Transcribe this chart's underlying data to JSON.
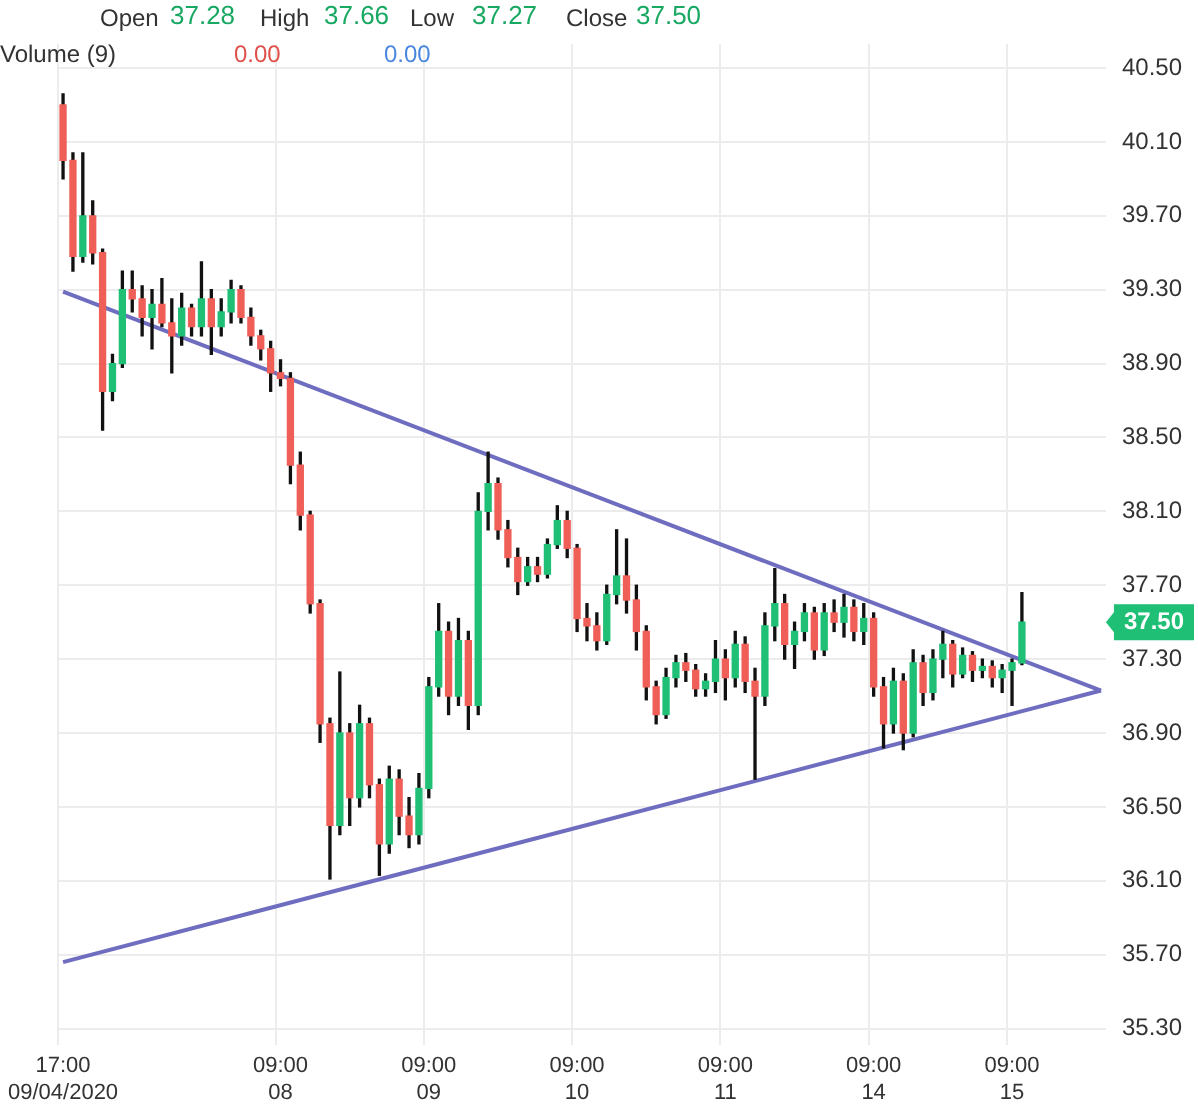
{
  "chart_data": {
    "type": "candlestick",
    "categories": [
      "17:00\n09/04/2020",
      null,
      null,
      null,
      null,
      null,
      null,
      null,
      null,
      null,
      null,
      null,
      null,
      null,
      null,
      null,
      null,
      null,
      null,
      null,
      null,
      null,
      "09:00\n08",
      null,
      null,
      null,
      null,
      null,
      null,
      null,
      null,
      null,
      null,
      null,
      null,
      null,
      null,
      "09:00\n09",
      null,
      null,
      null,
      null,
      null,
      null,
      null,
      null,
      null,
      null,
      null,
      null,
      null,
      null,
      "09:00\n10",
      null,
      null,
      null,
      null,
      null,
      null,
      null,
      null,
      null,
      null,
      null,
      null,
      null,
      null,
      "09:00\n11",
      null,
      null,
      null,
      null,
      null,
      null,
      null,
      null,
      null,
      null,
      null,
      null,
      null,
      null,
      "09:00\n14",
      null,
      null,
      null,
      null,
      null,
      null,
      null,
      null,
      null,
      null,
      null,
      null,
      null,
      "09:00\n15",
      null,
      null,
      null,
      null,
      null,
      null,
      null,
      null,
      null
    ],
    "ohlc": [
      [
        40.3,
        40.36,
        39.9,
        40.0
      ],
      [
        40.0,
        40.04,
        39.4,
        39.48
      ],
      [
        39.48,
        40.04,
        39.45,
        39.7
      ],
      [
        39.7,
        39.78,
        39.44,
        39.5
      ],
      [
        39.5,
        39.52,
        38.54,
        38.75
      ],
      [
        38.75,
        38.95,
        38.7,
        38.9
      ],
      [
        38.9,
        39.4,
        38.88,
        39.3
      ],
      [
        39.3,
        39.4,
        39.18,
        39.25
      ],
      [
        39.25,
        39.32,
        39.05,
        39.15
      ],
      [
        39.15,
        39.3,
        38.98,
        39.22
      ],
      [
        39.22,
        39.36,
        39.1,
        39.12
      ],
      [
        39.12,
        39.25,
        38.85,
        39.05
      ],
      [
        39.05,
        39.28,
        39.0,
        39.2
      ],
      [
        39.2,
        39.22,
        39.05,
        39.1
      ],
      [
        39.1,
        39.45,
        39.05,
        39.25
      ],
      [
        39.25,
        39.3,
        38.95,
        39.1
      ],
      [
        39.1,
        39.25,
        39.05,
        39.18
      ],
      [
        39.18,
        39.35,
        39.12,
        39.3
      ],
      [
        39.3,
        39.32,
        39.12,
        39.15
      ],
      [
        39.15,
        39.2,
        39.0,
        39.05
      ],
      [
        39.05,
        39.08,
        38.92,
        38.98
      ],
      [
        38.98,
        39.02,
        38.75,
        38.85
      ],
      [
        38.85,
        38.92,
        38.78,
        38.82
      ],
      [
        38.82,
        38.85,
        38.25,
        38.35
      ],
      [
        38.35,
        38.42,
        38.0,
        38.08
      ],
      [
        38.08,
        38.1,
        37.55,
        37.6
      ],
      [
        37.6,
        37.62,
        36.85,
        36.95
      ],
      [
        36.95,
        36.98,
        36.11,
        36.4
      ],
      [
        36.4,
        37.23,
        36.35,
        36.9
      ],
      [
        36.9,
        36.95,
        36.4,
        36.55
      ],
      [
        36.55,
        37.05,
        36.5,
        36.95
      ],
      [
        36.95,
        36.98,
        36.55,
        36.62
      ],
      [
        36.62,
        36.65,
        36.13,
        36.3
      ],
      [
        36.3,
        36.72,
        36.25,
        36.65
      ],
      [
        36.65,
        36.7,
        36.35,
        36.45
      ],
      [
        36.45,
        36.55,
        36.28,
        36.35
      ],
      [
        36.35,
        36.68,
        36.3,
        36.6
      ],
      [
        36.6,
        37.2,
        36.55,
        37.15
      ],
      [
        37.15,
        37.6,
        37.1,
        37.45
      ],
      [
        37.45,
        37.5,
        37.0,
        37.1
      ],
      [
        37.1,
        37.52,
        37.05,
        37.4
      ],
      [
        37.4,
        37.45,
        36.92,
        37.05
      ],
      [
        37.05,
        38.2,
        37.0,
        38.1
      ],
      [
        38.1,
        38.42,
        38.0,
        38.25
      ],
      [
        38.25,
        38.28,
        37.95,
        38.0
      ],
      [
        38.0,
        38.05,
        37.8,
        37.85
      ],
      [
        37.85,
        37.9,
        37.65,
        37.72
      ],
      [
        37.72,
        37.85,
        37.7,
        37.8
      ],
      [
        37.8,
        37.85,
        37.72,
        37.76
      ],
      [
        37.76,
        37.95,
        37.74,
        37.92
      ],
      [
        37.92,
        38.13,
        37.9,
        38.05
      ],
      [
        38.05,
        38.1,
        37.85,
        37.9
      ],
      [
        37.9,
        37.92,
        37.45,
        37.52
      ],
      [
        37.52,
        37.6,
        37.4,
        37.48
      ],
      [
        37.48,
        37.55,
        37.35,
        37.4
      ],
      [
        37.4,
        37.7,
        37.38,
        37.65
      ],
      [
        37.65,
        38.0,
        37.6,
        37.75
      ],
      [
        37.75,
        37.95,
        37.55,
        37.62
      ],
      [
        37.62,
        37.7,
        37.35,
        37.45
      ],
      [
        37.45,
        37.48,
        37.08,
        37.15
      ],
      [
        37.15,
        37.18,
        36.95,
        37.0
      ],
      [
        37.0,
        37.25,
        36.98,
        37.2
      ],
      [
        37.2,
        37.32,
        37.15,
        37.28
      ],
      [
        37.28,
        37.33,
        37.18,
        37.24
      ],
      [
        37.24,
        37.27,
        37.1,
        37.14
      ],
      [
        37.14,
        37.22,
        37.1,
        37.18
      ],
      [
        37.18,
        37.4,
        37.12,
        37.3
      ],
      [
        37.3,
        37.35,
        37.08,
        37.2
      ],
      [
        37.2,
        37.45,
        37.15,
        37.38
      ],
      [
        37.38,
        37.42,
        37.12,
        37.18
      ],
      [
        37.18,
        37.25,
        36.65,
        37.1
      ],
      [
        37.1,
        37.55,
        37.05,
        37.48
      ],
      [
        37.48,
        37.79,
        37.4,
        37.6
      ],
      [
        37.6,
        37.65,
        37.3,
        37.38
      ],
      [
        37.38,
        37.5,
        37.25,
        37.45
      ],
      [
        37.45,
        37.6,
        37.4,
        37.55
      ],
      [
        37.55,
        37.58,
        37.3,
        37.35
      ],
      [
        37.35,
        37.6,
        37.32,
        37.55
      ],
      [
        37.55,
        37.62,
        37.45,
        37.5
      ],
      [
        37.5,
        37.65,
        37.42,
        37.58
      ],
      [
        37.58,
        37.62,
        37.4,
        37.45
      ],
      [
        37.45,
        37.6,
        37.38,
        37.52
      ],
      [
        37.52,
        37.55,
        37.1,
        37.15
      ],
      [
        37.15,
        37.2,
        36.82,
        36.95
      ],
      [
        36.95,
        37.25,
        36.9,
        37.18
      ],
      [
        37.18,
        37.22,
        36.81,
        36.9
      ],
      [
        36.9,
        37.35,
        36.88,
        37.28
      ],
      [
        37.28,
        37.32,
        37.05,
        37.12
      ],
      [
        37.12,
        37.35,
        37.08,
        37.3
      ],
      [
        37.3,
        37.45,
        37.2,
        37.38
      ],
      [
        37.38,
        37.4,
        37.15,
        37.22
      ],
      [
        37.22,
        37.36,
        37.2,
        37.32
      ],
      [
        37.32,
        37.34,
        37.18,
        37.24
      ],
      [
        37.24,
        37.3,
        37.2,
        37.26
      ],
      [
        37.26,
        37.29,
        37.15,
        37.2
      ],
      [
        37.2,
        37.27,
        37.12,
        37.24
      ],
      [
        37.24,
        37.3,
        37.05,
        37.28
      ],
      [
        37.28,
        37.66,
        37.27,
        37.5
      ],
      null,
      null,
      null,
      null,
      null,
      null,
      null,
      null
    ],
    "series": [
      {
        "type": "line",
        "color": "#6f6dbf",
        "values": [
          39.29,
          null,
          null,
          null,
          null,
          null,
          null,
          null,
          null,
          null,
          null,
          null,
          null,
          null,
          null,
          null,
          null,
          null,
          null,
          null,
          null,
          null,
          null,
          null,
          null,
          null,
          null,
          null,
          null,
          null,
          null,
          null,
          null,
          null,
          null,
          null,
          null,
          null,
          null,
          null,
          null,
          null,
          null,
          null,
          null,
          null,
          null,
          null,
          null,
          null,
          null,
          null,
          null,
          null,
          null,
          null,
          null,
          null,
          null,
          null,
          null,
          null,
          null,
          null,
          null,
          null,
          null,
          null,
          null,
          null,
          null,
          null,
          null,
          null,
          null,
          null,
          null,
          null,
          null,
          null,
          null,
          null,
          null,
          null,
          null,
          null,
          null,
          null,
          null,
          null,
          null,
          null,
          null,
          null,
          null,
          null,
          null,
          null,
          null,
          null,
          null,
          null,
          null,
          null,
          null,
          37.13
        ]
      },
      {
        "type": "line",
        "color": "#6f6dbf",
        "values": [
          35.66,
          null,
          null,
          null,
          null,
          null,
          null,
          null,
          null,
          null,
          null,
          null,
          null,
          null,
          null,
          null,
          null,
          null,
          null,
          null,
          null,
          null,
          null,
          null,
          null,
          null,
          null,
          null,
          null,
          null,
          null,
          null,
          null,
          null,
          null,
          null,
          null,
          null,
          null,
          null,
          null,
          null,
          null,
          null,
          null,
          null,
          null,
          null,
          null,
          null,
          null,
          null,
          null,
          null,
          null,
          null,
          null,
          null,
          null,
          null,
          null,
          null,
          null,
          null,
          null,
          null,
          null,
          null,
          null,
          null,
          null,
          null,
          null,
          null,
          null,
          null,
          null,
          null,
          null,
          null,
          null,
          null,
          null,
          null,
          null,
          null,
          null,
          null,
          null,
          null,
          null,
          null,
          null,
          null,
          null,
          null,
          null,
          null,
          null,
          null,
          null,
          null,
          null,
          null,
          null,
          37.13
        ]
      }
    ],
    "ylim": [
      35.21,
      40.63
    ],
    "yticks": [
      {
        "value": 35.3,
        "label": "35.30"
      },
      {
        "value": 35.7,
        "label": "35.70"
      },
      {
        "value": 36.1,
        "label": "36.10"
      },
      {
        "value": 36.5,
        "label": "36.50"
      },
      {
        "value": 36.9,
        "label": "36.90"
      },
      {
        "value": 37.3,
        "label": "37.30"
      },
      {
        "value": 37.7,
        "label": "37.70"
      },
      {
        "value": 38.1,
        "label": "38.10"
      },
      {
        "value": 38.5,
        "label": "38.50"
      },
      {
        "value": 38.9,
        "label": "38.90"
      },
      {
        "value": 39.3,
        "label": "39.30"
      },
      {
        "value": 39.7,
        "label": "39.70"
      },
      {
        "value": 40.1,
        "label": "40.10"
      },
      {
        "value": 40.5,
        "label": "40.50"
      }
    ],
    "grid": true,
    "annotations": [
      "Open",
      "37.28",
      "High",
      "37.66",
      "Low",
      "37.27",
      "Close",
      "37.50",
      "Volume (9)",
      "0.00",
      "0.00",
      "37.50"
    ]
  }
}
